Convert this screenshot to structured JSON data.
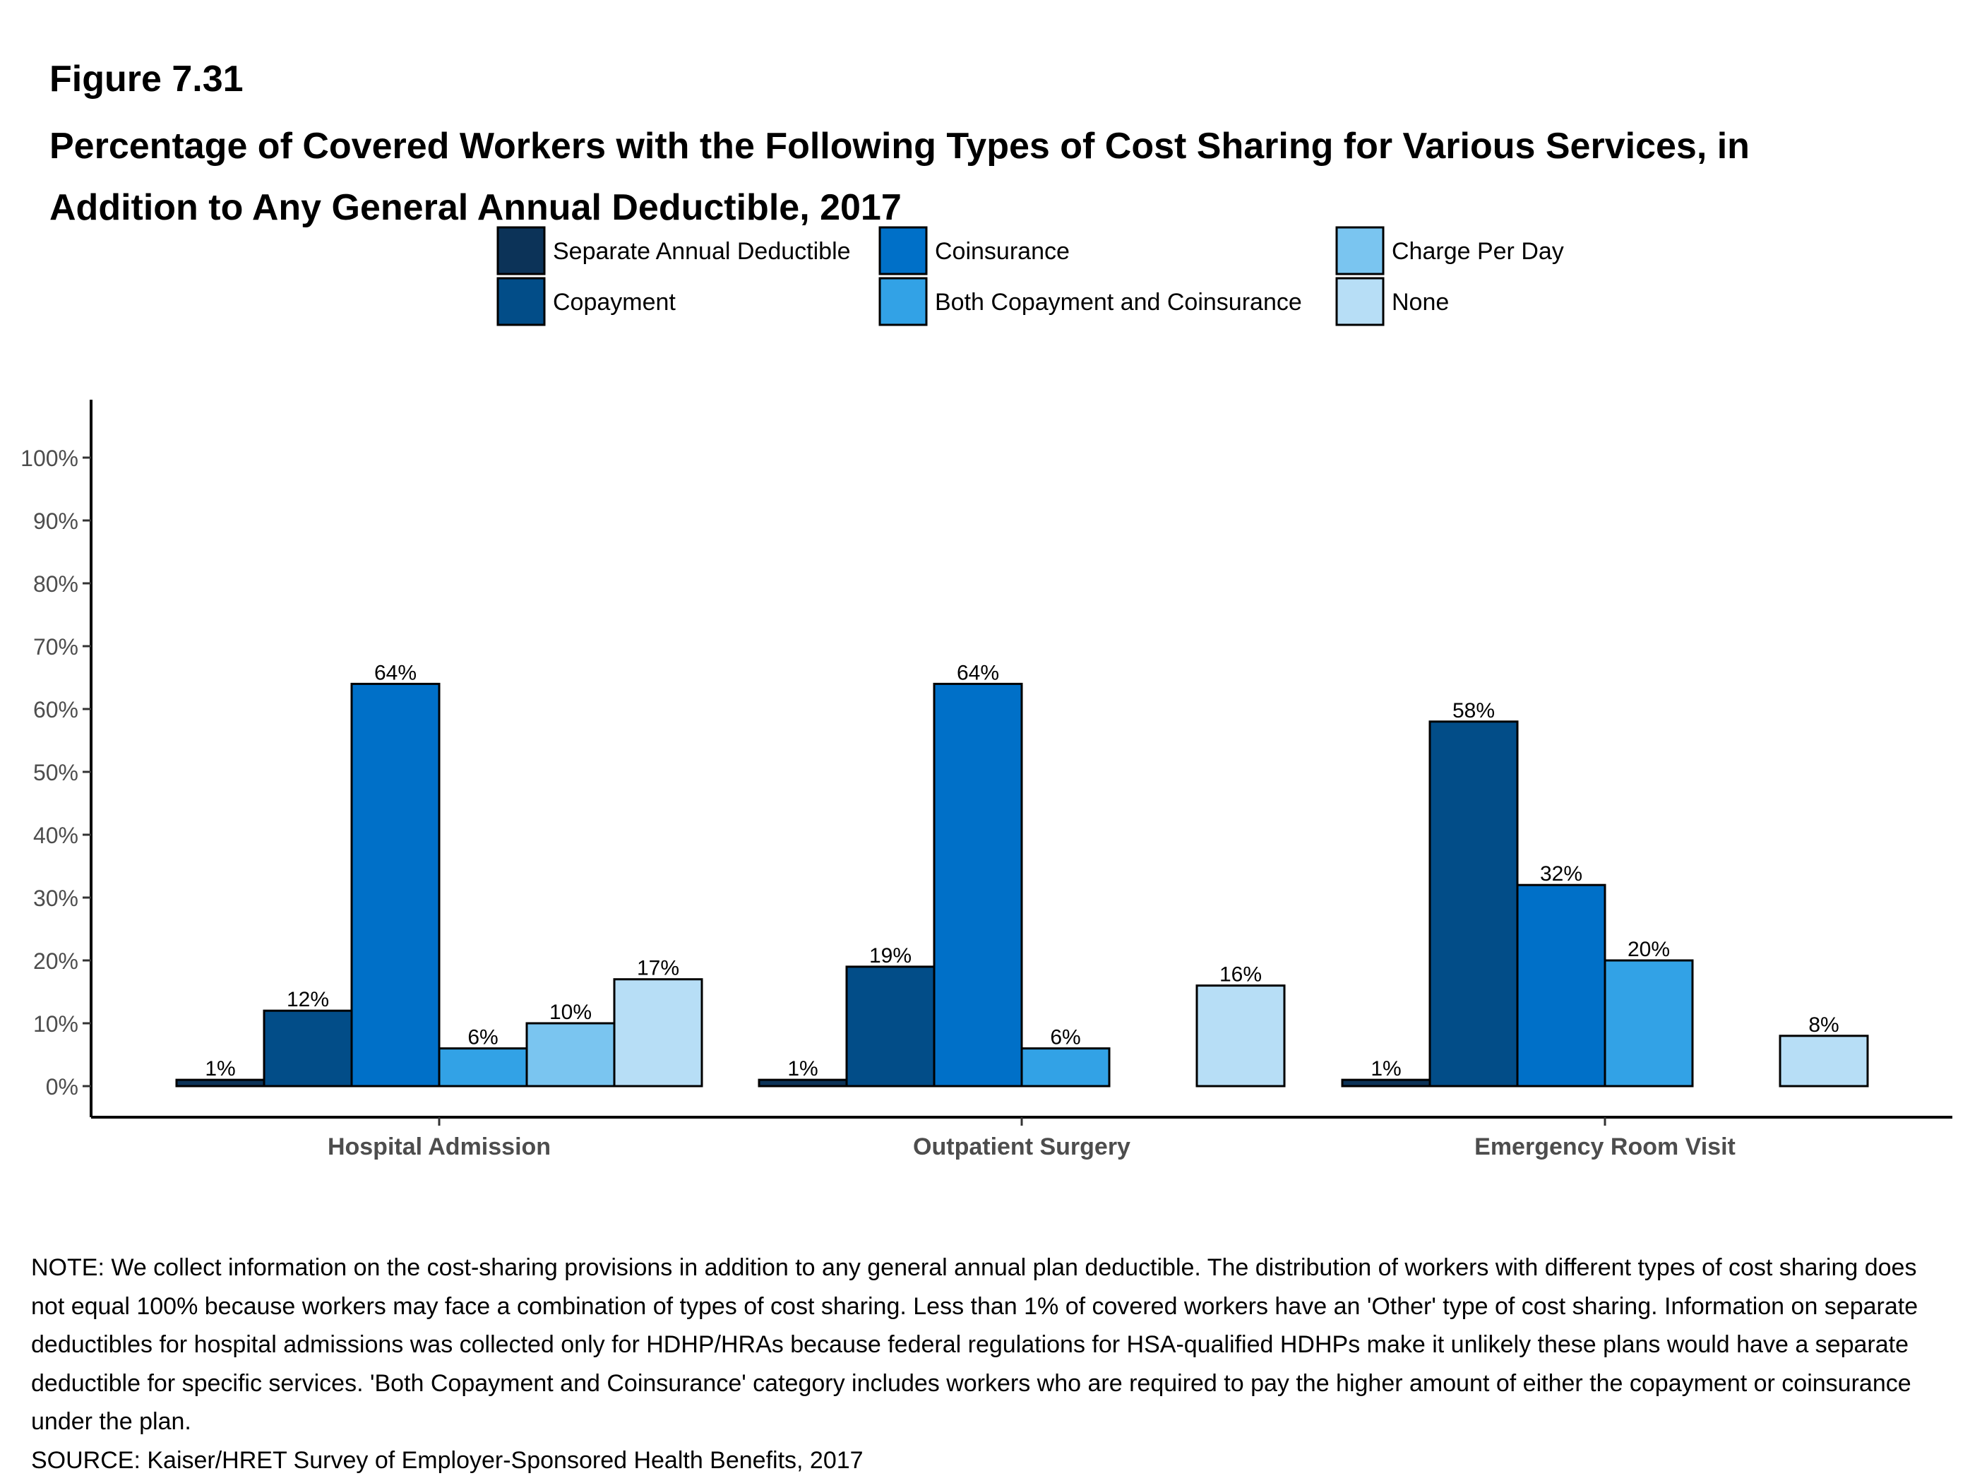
{
  "figure_label": "Figure 7.31",
  "title": "Percentage of Covered Workers with the Following Types of Cost Sharing for Various Services, in Addition to Any General Annual Deductible, 2017",
  "note": "NOTE: We collect information on the cost-sharing provisions in addition to any general annual plan deductible. The distribution of workers with different types of cost sharing does not equal 100% because workers may face a combination of types of cost sharing. Less than 1% of covered workers have an 'Other' type of cost sharing. Information on separate deductibles for hospital admissions was collected only for HDHP/HRAs because federal regulations for HSA-qualified HDHPs make it unlikely these plans would have a separate deductible for specific services. 'Both Copayment and Coinsurance' category includes workers who are required to pay the higher amount of either the copayment or coinsurance under the plan.",
  "source": "SOURCE: Kaiser/HRET Survey of Employer-Sponsored Health Benefits, 2017",
  "chart_data": {
    "type": "bar",
    "categories": [
      "Hospital Admission",
      "Outpatient Surgery",
      "Emergency Room Visit"
    ],
    "series": [
      {
        "name": "Separate Annual Deductible",
        "color": "#0c3358",
        "values": [
          1,
          1,
          1
        ],
        "labels": [
          "1%",
          "1%",
          "1%"
        ]
      },
      {
        "name": "Copayment",
        "color": "#024d88",
        "values": [
          12,
          19,
          58
        ],
        "labels": [
          "12%",
          "19%",
          "58%"
        ]
      },
      {
        "name": "Coinsurance",
        "color": "#0070c8",
        "values": [
          64,
          64,
          32
        ],
        "labels": [
          "64%",
          "64%",
          "32%"
        ]
      },
      {
        "name": "Both Copayment and Coinsurance",
        "color": "#32a2e6",
        "values": [
          6,
          6,
          20
        ],
        "labels": [
          "6%",
          "6%",
          "20%"
        ]
      },
      {
        "name": "Charge Per Day",
        "color": "#7ac5f0",
        "values": [
          10,
          null,
          null
        ],
        "labels": [
          "10%",
          null,
          null
        ]
      },
      {
        "name": "None",
        "color": "#b7def6",
        "values": [
          17,
          16,
          8
        ],
        "labels": [
          "17%",
          "16%",
          "8%"
        ]
      }
    ],
    "y_ticks": [
      "0%",
      "10%",
      "20%",
      "30%",
      "40%",
      "50%",
      "60%",
      "70%",
      "80%",
      "90%",
      "100%"
    ],
    "ylim": [
      -5,
      109
    ],
    "xlabel": "",
    "ylabel": "",
    "legend_position": "top",
    "grid": false
  }
}
